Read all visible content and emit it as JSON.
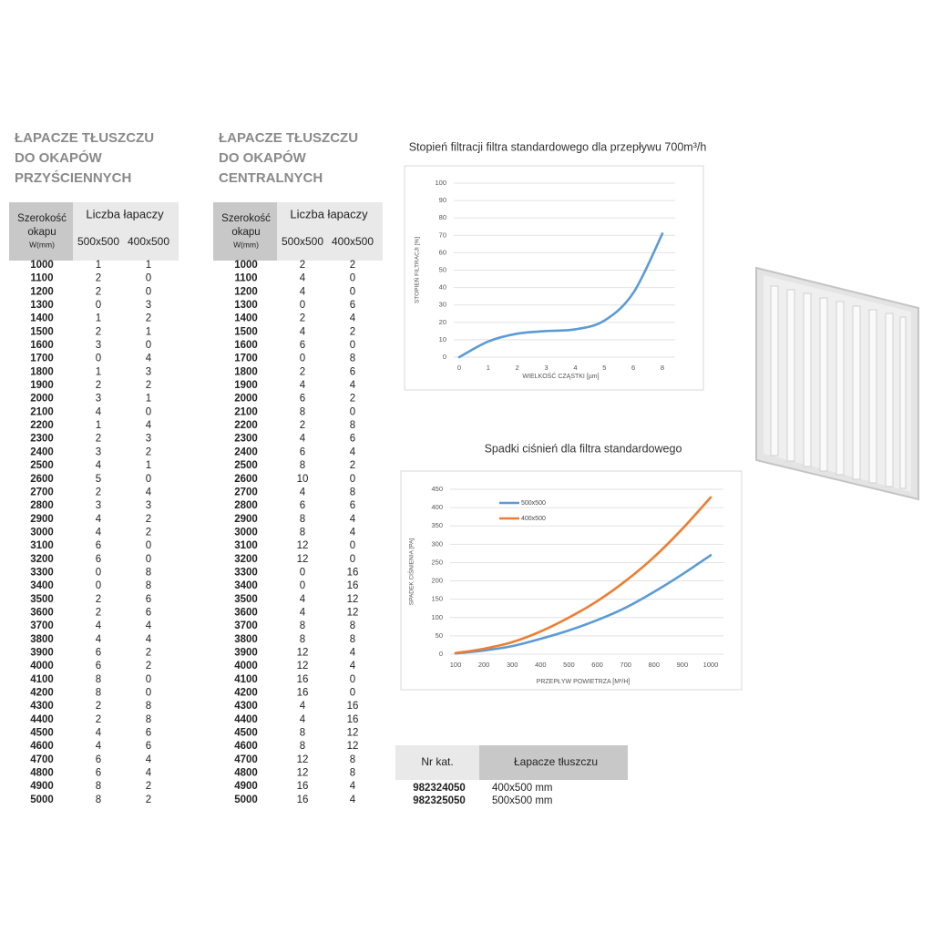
{
  "tables": [
    {
      "title_lines": [
        "ŁAPACZE TŁUSZCZU",
        "DO OKAPÓW",
        "PRZYŚCIENNYCH"
      ],
      "header": {
        "width_lines": [
          "Szerokość",
          "okapu",
          "W(mm)"
        ],
        "count": "Liczba łapaczy",
        "sizes": [
          "500x500",
          "400x500"
        ]
      },
      "rows": [
        [
          1000,
          1,
          1
        ],
        [
          1100,
          2,
          0
        ],
        [
          1200,
          2,
          0
        ],
        [
          1300,
          0,
          3
        ],
        [
          1400,
          1,
          2
        ],
        [
          1500,
          2,
          1
        ],
        [
          1600,
          3,
          0
        ],
        [
          1700,
          0,
          4
        ],
        [
          1800,
          1,
          3
        ],
        [
          1900,
          2,
          2
        ],
        [
          2000,
          3,
          1
        ],
        [
          2100,
          4,
          0
        ],
        [
          2200,
          1,
          4
        ],
        [
          2300,
          2,
          3
        ],
        [
          2400,
          3,
          2
        ],
        [
          2500,
          4,
          1
        ],
        [
          2600,
          5,
          0
        ],
        [
          2700,
          2,
          4
        ],
        [
          2800,
          3,
          3
        ],
        [
          2900,
          4,
          2
        ],
        [
          3000,
          4,
          2
        ],
        [
          3100,
          6,
          0
        ],
        [
          3200,
          6,
          0
        ],
        [
          3300,
          0,
          8
        ],
        [
          3400,
          0,
          8
        ],
        [
          3500,
          2,
          6
        ],
        [
          3600,
          2,
          6
        ],
        [
          3700,
          4,
          4
        ],
        [
          3800,
          4,
          4
        ],
        [
          3900,
          6,
          2
        ],
        [
          4000,
          6,
          2
        ],
        [
          4100,
          8,
          0
        ],
        [
          4200,
          8,
          0
        ],
        [
          4300,
          2,
          8
        ],
        [
          4400,
          2,
          8
        ],
        [
          4500,
          4,
          6
        ],
        [
          4600,
          4,
          6
        ],
        [
          4700,
          6,
          4
        ],
        [
          4800,
          6,
          4
        ],
        [
          4900,
          8,
          2
        ],
        [
          5000,
          8,
          2
        ]
      ]
    },
    {
      "title_lines": [
        "ŁAPACZE TŁUSZCZU",
        "DO OKAPÓW",
        "CENTRALNYCH"
      ],
      "header": {
        "width_lines": [
          "Szerokość",
          "okapu",
          "W(mm)"
        ],
        "count": "Liczba łapaczy",
        "sizes": [
          "500x500",
          "400x500"
        ]
      },
      "rows": [
        [
          1000,
          2,
          2
        ],
        [
          1100,
          4,
          0
        ],
        [
          1200,
          4,
          0
        ],
        [
          1300,
          0,
          6
        ],
        [
          1400,
          2,
          4
        ],
        [
          1500,
          4,
          2
        ],
        [
          1600,
          6,
          0
        ],
        [
          1700,
          0,
          8
        ],
        [
          1800,
          2,
          6
        ],
        [
          1900,
          4,
          4
        ],
        [
          2000,
          6,
          2
        ],
        [
          2100,
          8,
          0
        ],
        [
          2200,
          2,
          8
        ],
        [
          2300,
          4,
          6
        ],
        [
          2400,
          6,
          4
        ],
        [
          2500,
          8,
          2
        ],
        [
          2600,
          10,
          0
        ],
        [
          2700,
          4,
          8
        ],
        [
          2800,
          6,
          6
        ],
        [
          2900,
          8,
          4
        ],
        [
          3000,
          8,
          4
        ],
        [
          3100,
          12,
          0
        ],
        [
          3200,
          12,
          0
        ],
        [
          3300,
          0,
          16
        ],
        [
          3400,
          0,
          16
        ],
        [
          3500,
          4,
          12
        ],
        [
          3600,
          4,
          12
        ],
        [
          3700,
          8,
          8
        ],
        [
          3800,
          8,
          8
        ],
        [
          3900,
          12,
          4
        ],
        [
          4000,
          12,
          4
        ],
        [
          4100,
          16,
          0
        ],
        [
          4200,
          16,
          0
        ],
        [
          4300,
          4,
          16
        ],
        [
          4400,
          4,
          16
        ],
        [
          4500,
          8,
          12
        ],
        [
          4600,
          8,
          12
        ],
        [
          4700,
          12,
          8
        ],
        [
          4800,
          12,
          8
        ],
        [
          4900,
          16,
          4
        ],
        [
          5000,
          16,
          4
        ]
      ]
    }
  ],
  "chart_data": [
    {
      "type": "line",
      "title": "Stopień filtracji filtra standardowego dla przepływu 700m³/h",
      "x_label": "WIELKOŚĆ CZĄSTKI [µm]",
      "y_label": "STOPIEŃ FILTRACJI [%]",
      "categories": [
        0,
        1,
        2,
        3,
        4,
        5,
        6,
        8
      ],
      "values": [
        0,
        9,
        13.5,
        15,
        16,
        21,
        37,
        71
      ],
      "color": "#5b9bd5",
      "ylim": [
        0,
        100
      ],
      "yticks": [
        0,
        10,
        20,
        30,
        40,
        50,
        60,
        70,
        80,
        90,
        100
      ],
      "grid": true
    },
    {
      "type": "line",
      "title": "Spadki ciśnień dla filtra standardowego",
      "x_label": "PRZEPŁYW POWIETRZA [M³/H]",
      "y_label": "SPADEK CIŚNIENIA [PA]",
      "categories": [
        100,
        200,
        300,
        400,
        500,
        600,
        700,
        800,
        900,
        1000
      ],
      "series": [
        {
          "name": "500x500",
          "color": "#5b9bd5",
          "values": [
            2,
            10,
            22,
            42,
            65,
            93,
            127,
            170,
            218,
            270
          ]
        },
        {
          "name": "400x500",
          "color": "#ed7d31",
          "values": [
            3,
            15,
            33,
            62,
            100,
            145,
            200,
            265,
            342,
            428
          ]
        }
      ],
      "ylim": [
        0,
        450
      ],
      "yticks": [
        0,
        50,
        100,
        150,
        200,
        250,
        300,
        350,
        400,
        450
      ],
      "grid": true,
      "legend": "top-left"
    }
  ],
  "catalog": {
    "header": [
      "Nr kat.",
      "Łapacze tłuszczu"
    ],
    "rows": [
      [
        "982324050",
        "400x500 mm"
      ],
      [
        "982325050",
        "500x500 mm"
      ]
    ]
  }
}
